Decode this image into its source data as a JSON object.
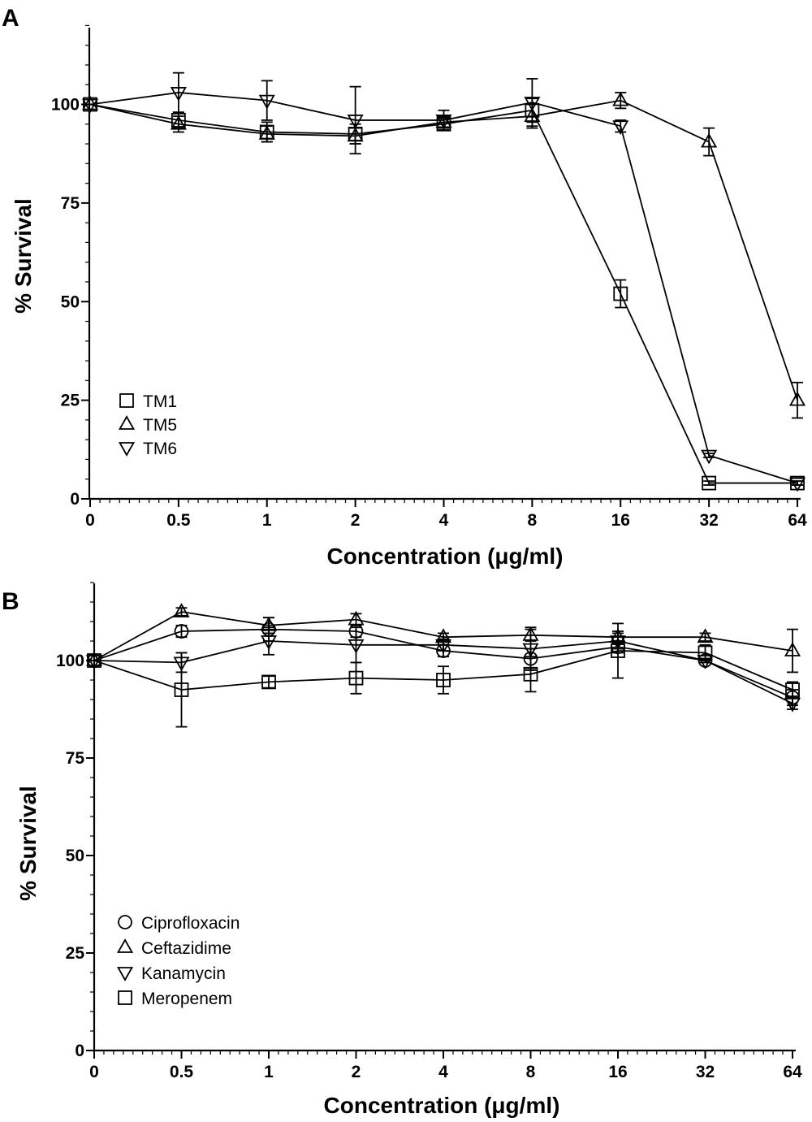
{
  "chart_data": [
    {
      "panel_label": "A",
      "type": "line",
      "xlabel": "Concentration (μg/ml)",
      "ylabel": "% Survival",
      "categories": [
        "0",
        "0.5",
        "1",
        "2",
        "4",
        "8",
        "16",
        "32",
        "64"
      ],
      "ylim": [
        0,
        120
      ],
      "y_ticks": [
        "0",
        "25",
        "50",
        "75",
        "100"
      ],
      "legend_position": "bottom-left",
      "series": [
        {
          "name": "TM1",
          "marker": "square",
          "values": [
            100,
            96,
            93,
            92.5,
            95,
            98.5,
            52,
            4,
            4
          ],
          "error": [
            0,
            2,
            2.5,
            2.5,
            1.5,
            3,
            3.5,
            0.5,
            0.5
          ]
        },
        {
          "name": "TM5",
          "marker": "triangle-up",
          "values": [
            100,
            95,
            92.5,
            92,
            95.5,
            97,
            101,
            90.5,
            25
          ],
          "error": [
            0,
            2,
            2,
            2,
            1.5,
            3,
            2,
            3.5,
            4.5
          ]
        },
        {
          "name": "TM6",
          "marker": "triangle-down",
          "values": [
            100,
            103,
            101,
            96,
            96,
            100.5,
            94.5,
            11,
            4
          ],
          "error": [
            0,
            5,
            5,
            8.5,
            2.5,
            6,
            1.5,
            0.5,
            0.5
          ]
        }
      ]
    },
    {
      "panel_label": "B",
      "type": "line",
      "xlabel": "Concentration (μg/ml)",
      "ylabel": "% Survival",
      "categories": [
        "0",
        "0.5",
        "1",
        "2",
        "4",
        "8",
        "16",
        "32",
        "64"
      ],
      "ylim": [
        0,
        120
      ],
      "y_ticks": [
        "0",
        "25",
        "50",
        "75",
        "100"
      ],
      "legend_position": "bottom-left",
      "series": [
        {
          "name": "Ciprofloxacin",
          "marker": "circle",
          "values": [
            100,
            107.5,
            108,
            107.5,
            102.5,
            100.5,
            103.5,
            100,
            90.5
          ],
          "error": [
            0,
            1.5,
            3,
            1.5,
            1.5,
            2.5,
            1.5,
            0.5,
            2
          ]
        },
        {
          "name": "Ceftazidime",
          "marker": "triangle-up",
          "values": [
            100,
            112.5,
            109,
            110.5,
            106,
            106.5,
            106,
            106,
            102.5
          ],
          "error": [
            0,
            1,
            2,
            1.5,
            1,
            1.5,
            1.5,
            1,
            5.5
          ]
        },
        {
          "name": "Kanamycin",
          "marker": "triangle-down",
          "values": [
            100,
            99.5,
            105,
            104,
            104,
            103,
            105,
            100,
            89
          ],
          "error": [
            0,
            2.5,
            3.5,
            4.5,
            1.5,
            5.5,
            2,
            0.5,
            1.5
          ]
        },
        {
          "name": "Meropenem",
          "marker": "square",
          "values": [
            100,
            92.5,
            94.5,
            95.5,
            95,
            96.5,
            102.5,
            102,
            92.5
          ],
          "error": [
            0,
            9.5,
            1.5,
            4,
            3.5,
            4.5,
            7,
            2,
            2
          ]
        }
      ]
    }
  ]
}
